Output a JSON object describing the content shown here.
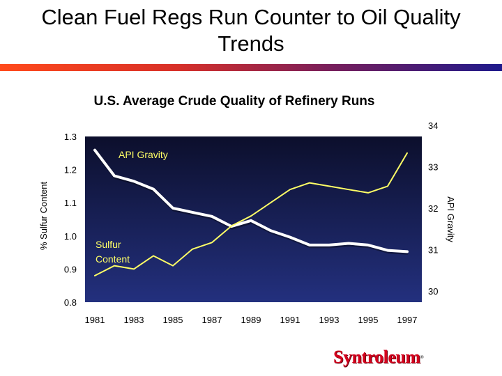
{
  "slide": {
    "title_line1": "Clean Fuel Regs Run Counter to Oil Quality",
    "title_line2": "Trends",
    "logo_text": "Syntroleum",
    "logo_mark": "®"
  },
  "colors": {
    "plot_top": "#0c0f2c",
    "plot_bottom": "#23307e",
    "api_line": "#ffffff",
    "sulfur_line": "#ffff66",
    "series_label": "#ffff66",
    "logo": "#d4001c"
  },
  "chart_data": {
    "type": "line",
    "title": "U.S. Average Crude Quality of Refinery Runs",
    "xlabel": "",
    "ylabel": "% Sulfur Content",
    "y2label": "API Gravity",
    "x": [
      1981,
      1982,
      1983,
      1984,
      1985,
      1986,
      1987,
      1988,
      1989,
      1990,
      1991,
      1992,
      1993,
      1994,
      1995,
      1996,
      1997
    ],
    "x_tick_labels": [
      "1981",
      "1983",
      "1985",
      "1987",
      "1989",
      "1991",
      "1993",
      "1995",
      "1997"
    ],
    "ylim": [
      0.8,
      1.3
    ],
    "y_tick_labels": [
      "1.3",
      "1.2",
      "1.1",
      "1.0",
      "0.9",
      "0.8"
    ],
    "y2lim": [
      30,
      34
    ],
    "y2_tick_labels": [
      "34",
      "33",
      "32",
      "31",
      "30"
    ],
    "grid": false,
    "series": [
      {
        "name": "API Gravity",
        "axis": "right",
        "values": [
          33.67,
          33.05,
          32.92,
          32.73,
          32.27,
          32.17,
          32.07,
          31.83,
          31.97,
          31.73,
          31.57,
          31.38,
          31.38,
          31.42,
          31.38,
          31.25,
          31.22
        ]
      },
      {
        "name": "Sulfur Content",
        "name_lines": [
          "Sulfur",
          "Content"
        ],
        "axis": "left",
        "values": [
          0.88,
          0.91,
          0.9,
          0.94,
          0.91,
          0.96,
          0.98,
          1.03,
          1.06,
          1.1,
          1.14,
          1.16,
          1.15,
          1.14,
          1.13,
          1.15,
          1.25
        ]
      }
    ]
  }
}
